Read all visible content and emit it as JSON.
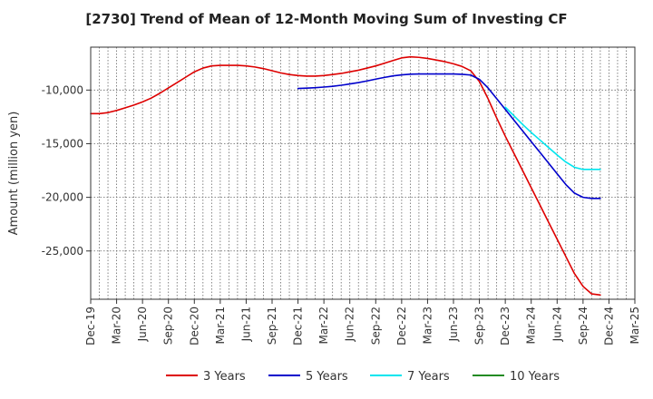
{
  "chart_data": {
    "type": "line",
    "title": "[2730]  Trend of Mean of 12-Month Moving Sum of Investing CF",
    "xlabel": "",
    "ylabel": "Amount (million yen)",
    "x_ticks": [
      "Dec-19",
      "Mar-20",
      "Jun-20",
      "Sep-20",
      "Dec-20",
      "Mar-21",
      "Jun-21",
      "Sep-21",
      "Dec-21",
      "Mar-22",
      "Jun-22",
      "Sep-22",
      "Dec-22",
      "Mar-23",
      "Jun-23",
      "Sep-23",
      "Dec-23",
      "Mar-24",
      "Jun-24",
      "Sep-24",
      "Dec-24",
      "Mar-25"
    ],
    "y_ticks": [
      -10000,
      -15000,
      -20000,
      -25000
    ],
    "y_tick_labels": [
      "-10,000",
      "-15,000",
      "-20,000",
      "-25,000"
    ],
    "ylim": [
      -29500,
      -6000
    ],
    "grid": true,
    "legend_position": "bottom",
    "series": [
      {
        "name": "3 Years",
        "color": "#dd0000",
        "values": [
          -12200,
          -12200,
          -12100,
          -11900,
          -11650,
          -11400,
          -11100,
          -10750,
          -10300,
          -9800,
          -9300,
          -8800,
          -8300,
          -7950,
          -7750,
          -7700,
          -7700,
          -7700,
          -7750,
          -7850,
          -8000,
          -8200,
          -8400,
          -8550,
          -8650,
          -8700,
          -8700,
          -8650,
          -8550,
          -8450,
          -8300,
          -8150,
          -7950,
          -7750,
          -7500,
          -7250,
          -7000,
          -6900,
          -6950,
          -7050,
          -7200,
          -7350,
          -7550,
          -7800,
          -8200,
          -9200,
          -10800,
          -12600,
          -14300,
          -15900,
          -17500,
          -19100,
          -20700,
          -22300,
          -23900,
          -25500,
          -27100,
          -28300,
          -29000,
          -29100
        ]
      },
      {
        "name": "5 Years",
        "color": "#0000cc",
        "values": [
          null,
          null,
          null,
          null,
          null,
          null,
          null,
          null,
          null,
          null,
          null,
          null,
          null,
          null,
          null,
          null,
          null,
          null,
          null,
          null,
          null,
          null,
          null,
          null,
          -9850,
          -9820,
          -9780,
          -9720,
          -9650,
          -9550,
          -9430,
          -9300,
          -9150,
          -8980,
          -8820,
          -8680,
          -8580,
          -8520,
          -8500,
          -8500,
          -8500,
          -8500,
          -8500,
          -8530,
          -8600,
          -9000,
          -9800,
          -10800,
          -11800,
          -12800,
          -13800,
          -14800,
          -15800,
          -16800,
          -17800,
          -18800,
          -19600,
          -20000,
          -20100,
          -20100
        ]
      },
      {
        "name": "7 Years",
        "color": "#00e5ee",
        "values": [
          null,
          null,
          null,
          null,
          null,
          null,
          null,
          null,
          null,
          null,
          null,
          null,
          null,
          null,
          null,
          null,
          null,
          null,
          null,
          null,
          null,
          null,
          null,
          null,
          null,
          null,
          null,
          null,
          null,
          null,
          null,
          null,
          null,
          null,
          null,
          null,
          null,
          null,
          null,
          null,
          null,
          null,
          null,
          null,
          null,
          null,
          null,
          null,
          -11600,
          -12400,
          -13200,
          -13950,
          -14650,
          -15350,
          -16050,
          -16700,
          -17200,
          -17400,
          -17400,
          -17400
        ]
      },
      {
        "name": "10 Years",
        "color": "#228b22",
        "values": []
      }
    ]
  }
}
